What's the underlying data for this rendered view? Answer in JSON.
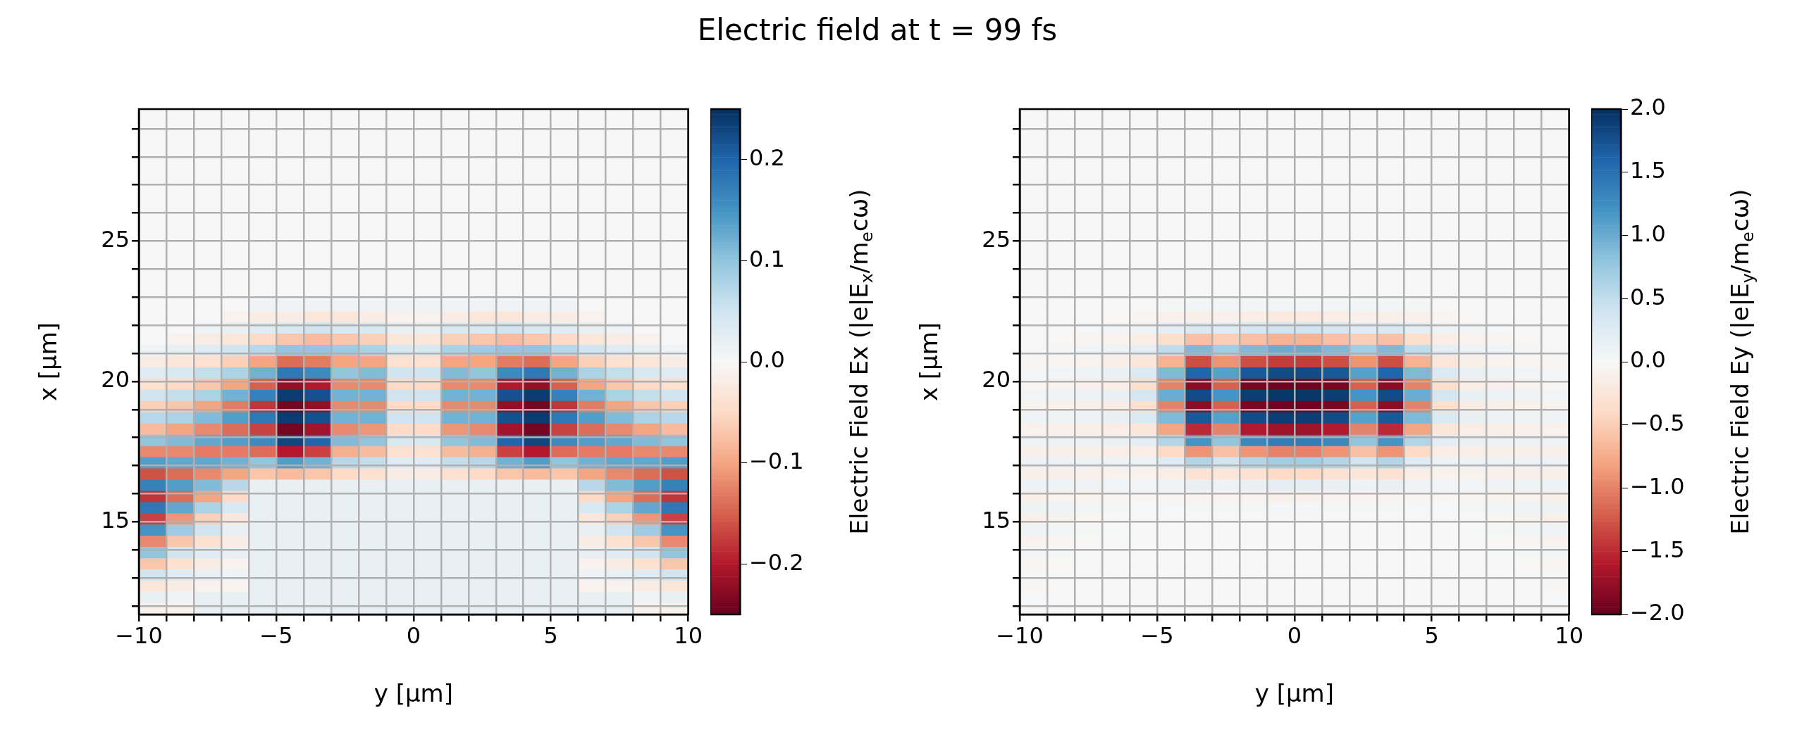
{
  "chart_data": [
    {
      "type": "heatmap",
      "title": "Electric field at t = 99 fs",
      "xlabel": "y [µm]",
      "ylabel": "x [µm]",
      "clabel": "Electric Field Ex (|e|E$_{x}$/m$_{e}$cω)",
      "xlim": [
        -10,
        10
      ],
      "ylim": [
        11.7,
        29.7
      ],
      "xticks": [
        {
          "value": -10,
          "label": "−10"
        },
        {
          "value": -9,
          "label": null
        },
        {
          "value": -8,
          "label": null
        },
        {
          "value": -7,
          "label": null
        },
        {
          "value": -6,
          "label": null
        },
        {
          "value": -5,
          "label": "−5"
        },
        {
          "value": -4,
          "label": null
        },
        {
          "value": -3,
          "label": null
        },
        {
          "value": -2,
          "label": null
        },
        {
          "value": -1,
          "label": null
        },
        0,
        {
          "value": 1,
          "label": null
        },
        {
          "value": 2,
          "label": null
        },
        {
          "value": 3,
          "label": null
        },
        {
          "value": 4,
          "label": null
        },
        5,
        {
          "value": 6,
          "label": null
        },
        {
          "value": 7,
          "label": null
        },
        {
          "value": 8,
          "label": null
        },
        {
          "value": 9,
          "label": null
        },
        10
      ],
      "yticks": [
        {
          "value": 12,
          "label": null
        },
        {
          "value": 13,
          "label": null
        },
        {
          "value": 14,
          "label": null
        },
        15,
        {
          "value": 16,
          "label": null
        },
        {
          "value": 17,
          "label": null
        },
        {
          "value": 18,
          "label": null
        },
        {
          "value": 19,
          "label": null
        },
        20,
        {
          "value": 21,
          "label": null
        },
        {
          "value": 22,
          "label": null
        },
        {
          "value": 23,
          "label": null
        },
        {
          "value": 24,
          "label": null
        },
        25,
        {
          "value": 26,
          "label": null
        },
        {
          "value": 27,
          "label": null
        },
        {
          "value": 28,
          "label": null
        },
        {
          "value": 29,
          "label": null
        }
      ],
      "grid": true,
      "clim": [
        -0.25,
        0.25
      ],
      "cticks": [
        {
          "value": -0.2,
          "label": "−0.2"
        },
        {
          "value": -0.1,
          "label": "−0.1"
        },
        {
          "value": 0,
          "label": "0.0"
        },
        0.1,
        0.2
      ],
      "cells": [
        [
          0,
          0,
          0,
          0,
          0,
          0,
          0,
          0,
          0,
          0,
          0,
          0,
          0,
          0,
          0,
          0,
          0,
          0,
          0,
          0
        ],
        [
          0,
          0,
          0,
          0,
          0,
          0,
          0,
          0,
          0,
          0,
          0,
          0,
          0,
          0,
          0,
          0,
          0,
          0,
          0,
          0
        ],
        [
          0,
          0,
          0,
          0,
          0,
          0,
          0,
          0,
          0,
          0,
          0,
          0,
          0,
          0,
          0,
          0,
          0,
          0,
          0,
          0
        ],
        [
          0,
          0,
          0,
          0,
          0,
          0,
          0,
          0,
          0,
          0,
          0,
          0,
          0,
          0,
          0,
          0,
          0,
          0,
          0,
          0
        ],
        [
          0,
          0,
          0,
          0,
          0,
          0,
          0,
          0,
          0,
          0,
          0,
          0,
          0,
          0,
          0,
          0,
          0,
          0,
          0,
          0
        ],
        [
          0,
          0,
          0,
          0,
          0,
          0,
          0,
          0,
          0,
          0,
          0,
          0,
          0,
          0,
          0,
          0,
          0,
          0,
          0,
          0
        ],
        [
          0,
          0,
          0,
          0,
          0,
          0,
          0,
          0,
          0,
          0,
          0,
          0,
          0,
          0,
          0,
          0,
          0,
          0,
          0,
          0
        ],
        [
          0,
          0,
          0,
          0,
          0,
          0,
          0,
          0,
          0,
          0,
          0,
          0,
          0,
          0,
          0,
          0,
          0,
          0,
          0,
          0
        ],
        [
          0,
          0,
          0,
          0,
          0,
          0,
          0,
          0,
          0,
          0,
          0,
          0,
          0,
          0,
          0,
          0,
          0,
          0,
          0,
          0
        ],
        [
          0,
          0,
          0,
          0,
          0,
          0,
          0,
          0,
          0,
          0,
          0,
          0,
          0,
          0,
          0,
          0,
          0,
          0,
          0,
          0
        ],
        [
          0,
          0,
          0,
          0,
          0,
          0,
          0,
          0,
          0,
          0,
          0,
          0,
          0,
          0,
          0,
          0,
          0,
          0,
          0,
          0
        ],
        [
          0,
          0,
          0,
          0,
          0,
          0,
          0,
          0,
          0,
          0,
          0,
          0,
          0,
          0,
          0,
          0,
          0,
          0,
          0,
          0
        ],
        [
          0,
          0,
          0,
          0,
          0,
          0,
          0,
          0,
          0,
          0,
          0,
          0,
          0,
          0,
          0,
          0,
          0,
          0,
          0,
          0
        ],
        [
          0,
          0,
          0,
          0,
          0,
          0,
          0,
          0,
          0,
          0,
          0,
          0,
          0,
          0,
          0,
          0,
          0,
          0,
          0,
          0
        ],
        [
          0,
          0,
          0,
          0,
          0,
          0,
          0,
          0,
          0,
          0,
          0,
          0,
          0,
          0,
          0,
          0,
          0,
          0,
          0,
          0
        ],
        [
          0,
          0,
          0,
          0,
          0,
          0,
          0,
          0,
          0,
          0,
          0,
          0,
          0,
          0,
          0,
          0,
          0,
          0,
          0,
          0
        ],
        [
          0,
          0,
          0,
          0,
          0,
          0,
          0,
          0,
          0,
          0,
          0,
          0,
          0,
          0,
          0,
          0,
          0,
          0,
          0,
          0
        ],
        [
          0,
          0,
          0,
          0,
          0.01,
          0.01,
          0.01,
          0.01,
          0.01,
          0.01,
          0.01,
          0.01,
          0.01,
          0.01,
          0.01,
          0.01,
          0,
          0,
          0,
          0
        ],
        [
          0,
          0,
          0,
          -0.01,
          -0.02,
          -0.02,
          -0.03,
          -0.03,
          -0.02,
          -0.01,
          -0.01,
          -0.02,
          -0.03,
          -0.03,
          -0.02,
          -0.02,
          -0.01,
          0,
          0,
          0
        ],
        [
          0,
          0,
          0.01,
          0.02,
          0.03,
          0.04,
          0.05,
          0.04,
          0.04,
          0.02,
          0.02,
          0.04,
          0.04,
          0.05,
          0.04,
          0.03,
          0.02,
          0.01,
          0,
          0
        ],
        [
          0,
          -0.01,
          -0.02,
          -0.03,
          -0.05,
          -0.07,
          -0.08,
          -0.07,
          -0.06,
          -0.03,
          -0.03,
          -0.06,
          -0.07,
          -0.08,
          -0.07,
          -0.05,
          -0.03,
          -0.02,
          -0.01,
          0
        ],
        [
          0.01,
          0.02,
          0.03,
          0.05,
          0.07,
          0.1,
          0.1,
          0.09,
          0.08,
          0.04,
          0.04,
          0.08,
          0.09,
          0.1,
          0.1,
          0.07,
          0.05,
          0.03,
          0.02,
          0.01
        ],
        [
          -0.02,
          -0.03,
          -0.04,
          -0.06,
          -0.1,
          -0.14,
          -0.13,
          -0.1,
          -0.1,
          -0.04,
          -0.04,
          -0.1,
          -0.1,
          -0.13,
          -0.14,
          -0.1,
          -0.06,
          -0.04,
          -0.03,
          -0.02
        ],
        [
          0.03,
          0.04,
          0.06,
          0.08,
          0.12,
          0.18,
          0.16,
          0.1,
          0.11,
          0.05,
          0.05,
          0.11,
          0.1,
          0.16,
          0.18,
          0.12,
          0.08,
          0.06,
          0.04,
          0.03
        ],
        [
          -0.04,
          -0.05,
          -0.07,
          -0.1,
          -0.15,
          -0.22,
          -0.2,
          -0.12,
          -0.12,
          -0.05,
          -0.05,
          -0.12,
          -0.12,
          -0.2,
          -0.22,
          -0.15,
          -0.1,
          -0.07,
          -0.05,
          -0.04
        ],
        [
          0.05,
          0.06,
          0.08,
          0.12,
          0.17,
          0.24,
          0.22,
          0.12,
          0.12,
          0.05,
          0.05,
          0.12,
          0.12,
          0.22,
          0.24,
          0.17,
          0.12,
          0.08,
          0.06,
          0.05
        ],
        [
          -0.06,
          -0.07,
          -0.1,
          -0.13,
          -0.18,
          -0.24,
          -0.22,
          -0.12,
          -0.12,
          -0.05,
          -0.05,
          -0.12,
          -0.12,
          -0.22,
          -0.24,
          -0.18,
          -0.13,
          -0.1,
          -0.07,
          -0.06
        ],
        [
          0.07,
          0.08,
          0.11,
          0.14,
          0.18,
          0.24,
          0.22,
          0.12,
          0.12,
          0.05,
          0.05,
          0.12,
          0.12,
          0.22,
          0.24,
          0.18,
          0.14,
          0.11,
          0.08,
          0.07
        ],
        [
          -0.08,
          -0.1,
          -0.12,
          -0.14,
          -0.17,
          -0.24,
          -0.21,
          -0.12,
          -0.11,
          -0.05,
          -0.05,
          -0.11,
          -0.12,
          -0.21,
          -0.24,
          -0.17,
          -0.14,
          -0.12,
          -0.1,
          -0.08
        ],
        [
          0.1,
          0.11,
          0.13,
          0.14,
          0.16,
          0.23,
          0.2,
          0.11,
          0.1,
          0.04,
          0.04,
          0.1,
          0.11,
          0.2,
          0.23,
          0.16,
          0.14,
          0.13,
          0.11,
          0.1
        ],
        [
          -0.12,
          -0.12,
          -0.13,
          -0.13,
          -0.14,
          -0.2,
          -0.17,
          -0.09,
          -0.08,
          -0.04,
          -0.04,
          -0.08,
          -0.09,
          -0.17,
          -0.2,
          -0.14,
          -0.13,
          -0.13,
          -0.12,
          -0.12
        ],
        [
          0.14,
          0.13,
          0.13,
          0.12,
          0.1,
          0.14,
          0.12,
          0.07,
          0.06,
          0.03,
          0.03,
          0.06,
          0.07,
          0.12,
          0.14,
          0.1,
          0.12,
          0.13,
          0.13,
          0.14
        ],
        [
          -0.16,
          -0.14,
          -0.12,
          -0.1,
          -0.07,
          -0.08,
          -0.07,
          -0.05,
          -0.04,
          -0.02,
          -0.02,
          -0.04,
          -0.05,
          -0.07,
          -0.08,
          -0.07,
          -0.1,
          -0.12,
          -0.14,
          -0.16
        ],
        [
          0.17,
          0.14,
          0.11,
          0.07,
          0.02,
          0.02,
          0.02,
          0.02,
          0.02,
          0.02,
          0.02,
          0.02,
          0.02,
          0.02,
          0.02,
          0.02,
          0.07,
          0.11,
          0.14,
          0.17
        ],
        [
          -0.18,
          -0.14,
          -0.1,
          -0.05,
          0.02,
          0.02,
          0.02,
          0.02,
          0.02,
          0.02,
          0.02,
          0.02,
          0.02,
          0.02,
          0.02,
          0.02,
          -0.05,
          -0.1,
          -0.14,
          -0.18
        ],
        [
          0.18,
          0.13,
          0.08,
          0.04,
          0.02,
          0.02,
          0.02,
          0.02,
          0.02,
          0.02,
          0.02,
          0.02,
          0.02,
          0.02,
          0.02,
          0.02,
          0.04,
          0.08,
          0.13,
          0.18
        ],
        [
          -0.17,
          -0.11,
          -0.06,
          -0.03,
          0.02,
          0.02,
          0.02,
          0.02,
          0.02,
          0.02,
          0.02,
          0.02,
          0.02,
          0.02,
          0.02,
          0.02,
          -0.03,
          -0.06,
          -0.11,
          -0.17
        ],
        [
          0.15,
          0.09,
          0.05,
          0.02,
          0.02,
          0.02,
          0.02,
          0.02,
          0.02,
          0.02,
          0.02,
          0.02,
          0.02,
          0.02,
          0.02,
          0.02,
          0.02,
          0.05,
          0.09,
          0.15
        ],
        [
          -0.12,
          -0.07,
          -0.04,
          -0.02,
          0.02,
          0.02,
          0.02,
          0.02,
          0.02,
          0.02,
          0.02,
          0.02,
          0.02,
          0.02,
          0.02,
          0.02,
          -0.02,
          -0.04,
          -0.07,
          -0.12
        ],
        [
          0.1,
          0.05,
          0.03,
          0.02,
          0.02,
          0.02,
          0.02,
          0.02,
          0.02,
          0.02,
          0.02,
          0.02,
          0.02,
          0.02,
          0.02,
          0.02,
          0.02,
          0.03,
          0.05,
          0.1
        ],
        [
          -0.07,
          -0.04,
          -0.02,
          -0.01,
          0.02,
          0.02,
          0.02,
          0.02,
          0.02,
          0.02,
          0.02,
          0.02,
          0.02,
          0.02,
          0.02,
          0.02,
          -0.01,
          -0.02,
          -0.04,
          -0.07
        ],
        [
          0.05,
          0.03,
          0.02,
          0.01,
          0.02,
          0.02,
          0.02,
          0.02,
          0.02,
          0.02,
          0.02,
          0.02,
          0.02,
          0.02,
          0.02,
          0.02,
          0.01,
          0.02,
          0.03,
          0.05
        ],
        [
          -0.03,
          -0.02,
          -0.01,
          -0.01,
          0.02,
          0.02,
          0.02,
          0.02,
          0.02,
          0.02,
          0.02,
          0.02,
          0.02,
          0.02,
          0.02,
          0.02,
          -0.01,
          -0.01,
          -0.02,
          -0.03
        ],
        [
          0.02,
          0.01,
          0.02,
          0.02,
          0.02,
          0.02,
          0.02,
          0.02,
          0.02,
          0.02,
          0.02,
          0.02,
          0.02,
          0.02,
          0.02,
          0.02,
          0.02,
          0.02,
          0.01,
          0.02
        ],
        [
          -0.01,
          -0.01,
          0.02,
          0.02,
          0.02,
          0.02,
          0.02,
          0.02,
          0.02,
          0.02,
          0.02,
          0.02,
          0.02,
          0.02,
          0.02,
          0.02,
          0.02,
          0.02,
          -0.01,
          -0.01
        ]
      ]
    },
    {
      "type": "heatmap",
      "xlabel": "y [µm]",
      "ylabel": "x [µm]",
      "clabel": "Electric Field Ey (|e|E$_{y}$/m$_{e}$cω)",
      "xlim": [
        -10,
        10
      ],
      "ylim": [
        11.7,
        29.7
      ],
      "xticks": [
        {
          "value": -10,
          "label": "−10"
        },
        {
          "value": -9,
          "label": null
        },
        {
          "value": -8,
          "label": null
        },
        {
          "value": -7,
          "label": null
        },
        {
          "value": -6,
          "label": null
        },
        {
          "value": -5,
          "label": "−5"
        },
        {
          "value": -4,
          "label": null
        },
        {
          "value": -3,
          "label": null
        },
        {
          "value": -2,
          "label": null
        },
        {
          "value": -1,
          "label": null
        },
        0,
        {
          "value": 1,
          "label": null
        },
        {
          "value": 2,
          "label": null
        },
        {
          "value": 3,
          "label": null
        },
        {
          "value": 4,
          "label": null
        },
        5,
        {
          "value": 6,
          "label": null
        },
        {
          "value": 7,
          "label": null
        },
        {
          "value": 8,
          "label": null
        },
        {
          "value": 9,
          "label": null
        },
        10
      ],
      "yticks": [
        {
          "value": 12,
          "label": null
        },
        {
          "value": 13,
          "label": null
        },
        {
          "value": 14,
          "label": null
        },
        15,
        {
          "value": 16,
          "label": null
        },
        {
          "value": 17,
          "label": null
        },
        {
          "value": 18,
          "label": null
        },
        {
          "value": 19,
          "label": null
        },
        20,
        {
          "value": 21,
          "label": null
        },
        {
          "value": 22,
          "label": null
        },
        {
          "value": 23,
          "label": null
        },
        {
          "value": 24,
          "label": null
        },
        25,
        {
          "value": 26,
          "label": null
        },
        {
          "value": 27,
          "label": null
        },
        {
          "value": 28,
          "label": null
        },
        {
          "value": 29,
          "label": null
        }
      ],
      "grid": true,
      "clim": [
        -2,
        2
      ],
      "cticks": [
        {
          "value": -2,
          "label": "−2.0"
        },
        {
          "value": -1.5,
          "label": "−1.5"
        },
        {
          "value": -1,
          "label": "−1.0"
        },
        {
          "value": -0.5,
          "label": "−0.5"
        },
        {
          "value": 0,
          "label": "0.0"
        },
        0.5,
        {
          "value": 1,
          "label": "1.0"
        },
        1.5,
        {
          "value": 2,
          "label": "2.0"
        }
      ],
      "cells": [
        [
          0,
          0,
          0,
          0,
          0,
          0,
          0,
          0,
          0,
          0,
          0,
          0,
          0,
          0,
          0,
          0,
          0,
          0,
          0,
          0
        ],
        [
          0,
          0,
          0,
          0,
          0,
          0,
          0,
          0,
          0,
          0,
          0,
          0,
          0,
          0,
          0,
          0,
          0,
          0,
          0,
          0
        ],
        [
          0,
          0,
          0,
          0,
          0,
          0,
          0,
          0,
          0,
          0,
          0,
          0,
          0,
          0,
          0,
          0,
          0,
          0,
          0,
          0
        ],
        [
          0,
          0,
          0,
          0,
          0,
          0,
          0,
          0,
          0,
          0,
          0,
          0,
          0,
          0,
          0,
          0,
          0,
          0,
          0,
          0
        ],
        [
          0,
          0,
          0,
          0,
          0,
          0,
          0,
          0,
          0,
          0,
          0,
          0,
          0,
          0,
          0,
          0,
          0,
          0,
          0,
          0
        ],
        [
          0,
          0,
          0,
          0,
          0,
          0,
          0,
          0,
          0,
          0,
          0,
          0,
          0,
          0,
          0,
          0,
          0,
          0,
          0,
          0
        ],
        [
          0,
          0,
          0,
          0,
          0,
          0,
          0,
          0,
          0,
          0,
          0,
          0,
          0,
          0,
          0,
          0,
          0,
          0,
          0,
          0
        ],
        [
          0,
          0,
          0,
          0,
          0,
          0,
          0,
          0,
          0,
          0,
          0,
          0,
          0,
          0,
          0,
          0,
          0,
          0,
          0,
          0
        ],
        [
          0,
          0,
          0,
          0,
          0,
          0,
          0,
          0,
          0,
          0,
          0,
          0,
          0,
          0,
          0,
          0,
          0,
          0,
          0,
          0
        ],
        [
          0,
          0,
          0,
          0,
          0,
          0,
          0,
          0,
          0,
          0,
          0,
          0,
          0,
          0,
          0,
          0,
          0,
          0,
          0,
          0
        ],
        [
          0,
          0,
          0,
          0,
          0,
          0,
          0,
          0,
          0,
          0,
          0,
          0,
          0,
          0,
          0,
          0,
          0,
          0,
          0,
          0
        ],
        [
          0,
          0,
          0,
          0,
          0,
          0,
          0,
          0,
          0,
          0,
          0,
          0,
          0,
          0,
          0,
          0,
          0,
          0,
          0,
          0
        ],
        [
          0,
          0,
          0,
          0,
          0,
          0,
          0,
          0,
          0,
          0,
          0,
          0,
          0,
          0,
          0,
          0,
          0,
          0,
          0,
          0
        ],
        [
          0,
          0,
          0,
          0,
          0,
          0,
          0,
          0,
          0,
          0,
          0,
          0,
          0,
          0,
          0,
          0,
          0,
          0,
          0,
          0
        ],
        [
          0,
          0,
          0,
          0,
          0,
          0,
          0,
          0,
          0,
          0,
          0,
          0,
          0,
          0,
          0,
          0,
          0,
          0,
          0,
          0
        ],
        [
          0,
          0,
          0,
          0,
          0,
          0,
          0,
          0,
          0,
          0,
          0,
          0,
          0,
          0,
          0,
          0,
          0,
          0,
          0,
          0
        ],
        [
          0,
          0,
          0,
          0,
          0,
          0,
          0,
          0,
          0,
          0,
          0,
          0,
          0,
          0,
          0,
          0,
          0,
          0,
          0,
          0
        ],
        [
          0,
          0,
          0,
          0,
          0,
          0.03,
          0.05,
          0.05,
          0.05,
          0.05,
          0.05,
          0.05,
          0.05,
          0.05,
          0.03,
          0,
          0,
          0,
          0,
          0
        ],
        [
          0,
          0,
          0,
          -0.02,
          -0.05,
          -0.1,
          -0.12,
          -0.1,
          -0.15,
          -0.2,
          -0.2,
          -0.15,
          -0.1,
          -0.12,
          -0.1,
          -0.05,
          -0.02,
          0,
          0,
          0
        ],
        [
          0,
          0,
          0.02,
          0.05,
          0.1,
          0.2,
          0.3,
          0.25,
          0.35,
          0.4,
          0.4,
          0.35,
          0.25,
          0.3,
          0.2,
          0.1,
          0.05,
          0.02,
          0,
          0
        ],
        [
          0,
          -0.02,
          -0.05,
          -0.08,
          -0.15,
          -0.35,
          -0.6,
          -0.5,
          -0.6,
          -0.7,
          -0.7,
          -0.6,
          -0.5,
          -0.6,
          -0.35,
          -0.15,
          -0.08,
          -0.05,
          -0.02,
          0
        ],
        [
          0.02,
          0.04,
          0.06,
          0.1,
          0.2,
          0.5,
          0.9,
          0.7,
          0.9,
          1.0,
          1.0,
          0.9,
          0.7,
          0.9,
          0.5,
          0.2,
          0.1,
          0.06,
          0.04,
          0.02
        ],
        [
          -0.03,
          -0.05,
          -0.08,
          -0.12,
          -0.25,
          -0.7,
          -1.3,
          -0.9,
          -1.3,
          -1.4,
          -1.4,
          -1.3,
          -0.9,
          -1.3,
          -0.7,
          -0.25,
          -0.12,
          -0.08,
          -0.05,
          -0.03
        ],
        [
          0.04,
          0.06,
          0.1,
          0.14,
          0.3,
          0.9,
          1.6,
          1.1,
          1.7,
          1.8,
          1.8,
          1.7,
          1.1,
          1.6,
          0.9,
          0.3,
          0.14,
          0.1,
          0.06,
          0.04
        ],
        [
          -0.05,
          -0.07,
          -0.1,
          -0.15,
          -0.35,
          -1.0,
          -1.8,
          -1.2,
          -1.9,
          -1.95,
          -1.95,
          -1.9,
          -1.2,
          -1.8,
          -1.0,
          -0.35,
          -0.15,
          -0.1,
          -0.07,
          -0.05
        ],
        [
          0.06,
          0.08,
          0.12,
          0.16,
          0.35,
          1.0,
          1.8,
          1.2,
          1.9,
          1.95,
          1.95,
          1.9,
          1.2,
          1.8,
          1.0,
          0.35,
          0.16,
          0.12,
          0.08,
          0.06
        ],
        [
          -0.07,
          -0.09,
          -0.12,
          -0.16,
          -0.35,
          -1.0,
          -1.8,
          -1.2,
          -1.9,
          -1.95,
          -1.95,
          -1.9,
          -1.2,
          -1.8,
          -1.0,
          -0.35,
          -0.16,
          -0.12,
          -0.09,
          -0.07
        ],
        [
          0.08,
          0.1,
          0.12,
          0.16,
          0.3,
          0.9,
          1.7,
          1.1,
          1.8,
          1.9,
          1.9,
          1.8,
          1.1,
          1.7,
          0.9,
          0.3,
          0.16,
          0.12,
          0.1,
          0.08
        ],
        [
          -0.09,
          -0.1,
          -0.12,
          -0.15,
          -0.25,
          -0.8,
          -1.5,
          -1.0,
          -1.6,
          -1.7,
          -1.7,
          -1.6,
          -1.0,
          -1.5,
          -0.8,
          -0.25,
          -0.15,
          -0.12,
          -0.1,
          -0.09
        ],
        [
          0.1,
          0.11,
          0.12,
          0.14,
          0.2,
          0.6,
          1.2,
          0.8,
          1.3,
          1.4,
          1.4,
          1.3,
          0.8,
          1.2,
          0.6,
          0.2,
          0.14,
          0.12,
          0.11,
          0.1
        ],
        [
          -0.11,
          -0.11,
          -0.12,
          -0.13,
          -0.15,
          -0.4,
          -0.9,
          -0.6,
          -0.9,
          -1.0,
          -1.0,
          -0.9,
          -0.6,
          -0.9,
          -0.4,
          -0.15,
          -0.13,
          -0.12,
          -0.11,
          -0.11
        ],
        [
          0.12,
          0.11,
          0.11,
          0.11,
          0.12,
          0.25,
          0.6,
          0.4,
          0.6,
          0.7,
          0.7,
          0.6,
          0.4,
          0.6,
          0.25,
          0.12,
          0.11,
          0.11,
          0.11,
          0.12
        ],
        [
          -0.12,
          -0.11,
          -0.1,
          -0.09,
          -0.09,
          -0.15,
          -0.3,
          -0.25,
          -0.3,
          -0.4,
          -0.4,
          -0.3,
          -0.25,
          -0.3,
          -0.15,
          -0.09,
          -0.09,
          -0.1,
          -0.11,
          -0.12
        ],
        [
          0.12,
          0.1,
          0.08,
          0.07,
          0.06,
          0.08,
          0.15,
          0.12,
          0.15,
          0.2,
          0.2,
          0.15,
          0.12,
          0.15,
          0.08,
          0.06,
          0.07,
          0.08,
          0.1,
          0.12
        ],
        [
          -0.12,
          -0.09,
          -0.07,
          -0.05,
          -0.04,
          -0.05,
          -0.06,
          -0.06,
          -0.06,
          -0.1,
          -0.1,
          -0.06,
          -0.06,
          -0.06,
          -0.05,
          -0.04,
          -0.05,
          -0.07,
          -0.09,
          -0.12
        ],
        [
          0.11,
          0.08,
          0.05,
          0.03,
          0.02,
          0.02,
          0.03,
          0.03,
          0.03,
          0.04,
          0.04,
          0.03,
          0.03,
          0.03,
          0.02,
          0.02,
          0.03,
          0.05,
          0.08,
          0.11
        ],
        [
          -0.1,
          -0.07,
          -0.04,
          -0.02,
          -0.01,
          -0.01,
          -0.01,
          -0.01,
          -0.01,
          -0.02,
          -0.02,
          -0.01,
          -0.01,
          -0.01,
          -0.01,
          -0.01,
          -0.02,
          -0.04,
          -0.07,
          -0.1
        ],
        [
          0.09,
          0.05,
          0.03,
          0.01,
          0,
          0,
          0,
          0,
          0,
          0,
          0,
          0,
          0,
          0,
          0,
          0,
          0.01,
          0.03,
          0.05,
          0.09
        ],
        [
          -0.08,
          -0.04,
          -0.02,
          -0.01,
          0,
          0,
          0,
          0,
          0,
          0,
          0,
          0,
          0,
          0,
          0,
          0,
          -0.01,
          -0.02,
          -0.04,
          -0.08
        ],
        [
          0.06,
          0.03,
          0.01,
          0,
          0,
          0,
          0,
          0,
          0,
          0,
          0,
          0,
          0,
          0,
          0,
          0,
          0,
          0.01,
          0.03,
          0.06
        ],
        [
          -0.05,
          -0.02,
          -0.01,
          0,
          0,
          0,
          0,
          0,
          0,
          0,
          0,
          0,
          0,
          0,
          0,
          0,
          0,
          -0.01,
          -0.02,
          -0.05
        ],
        [
          0.04,
          0.02,
          0,
          0,
          0,
          0,
          0,
          0,
          0,
          0,
          0,
          0,
          0,
          0,
          0,
          0,
          0,
          0,
          0.02,
          0.04
        ],
        [
          -0.03,
          -0.01,
          0,
          0,
          0,
          0,
          0,
          0,
          0,
          0,
          0,
          0,
          0,
          0,
          0,
          0,
          0,
          0,
          -0.01,
          -0.03
        ],
        [
          0.02,
          0,
          0,
          0,
          0,
          0,
          0,
          0,
          0,
          0,
          0,
          0,
          0,
          0,
          0,
          0,
          0,
          0,
          0,
          0.02
        ],
        [
          -0.01,
          0,
          0,
          0,
          0,
          0,
          0,
          0,
          0,
          0,
          0,
          0,
          0,
          0,
          0,
          0,
          0,
          0,
          0,
          -0.01
        ]
      ]
    }
  ]
}
